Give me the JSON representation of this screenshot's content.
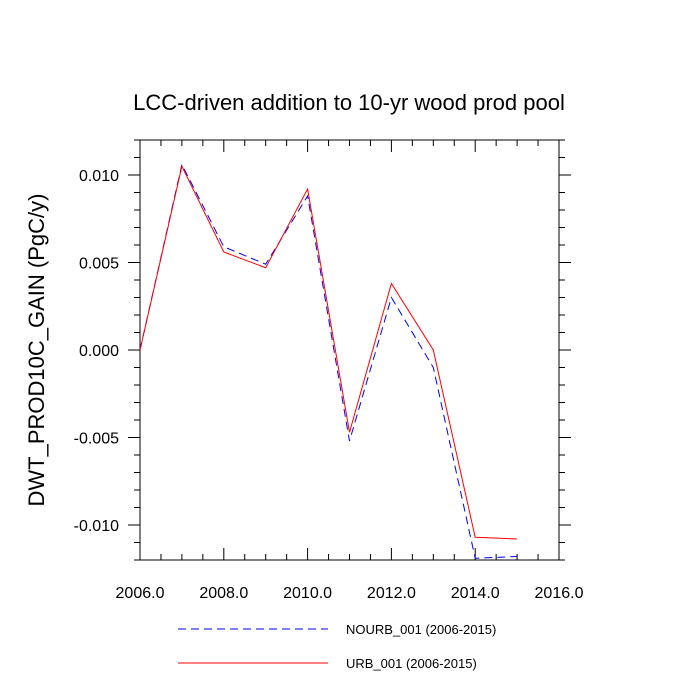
{
  "chart_data": {
    "type": "line",
    "title": "LCC-driven addition to 10-yr wood prod pool",
    "xlabel": "",
    "ylabel": "DWT_PROD10C_GAIN  (PgC/y)",
    "xlim": [
      2006,
      2016
    ],
    "ylim": [
      -0.012,
      0.012
    ],
    "x_ticks": [
      2006,
      2008,
      2010,
      2012,
      2014,
      2016
    ],
    "x_tick_labels": [
      "2006.0",
      "2008.0",
      "2010.0",
      "2012.0",
      "2014.0",
      "2016.0"
    ],
    "y_ticks": [
      -0.01,
      -0.005,
      0.0,
      0.005,
      0.01
    ],
    "y_tick_labels": [
      "-0.010",
      "-0.005",
      "0.000",
      "0.005",
      "0.010"
    ],
    "grid": false,
    "legend_position": "bottom",
    "x": [
      2006,
      2007,
      2008,
      2009,
      2010,
      2011,
      2012,
      2013,
      2014,
      2015
    ],
    "series": [
      {
        "name": "NOURB_001 (2006-2015)",
        "color": "#0000ff",
        "dash": "dashed",
        "values": [
          0.0,
          0.0106,
          0.0059,
          0.0049,
          0.0088,
          -0.0052,
          0.003,
          -0.001,
          -0.0119,
          -0.0118
        ]
      },
      {
        "name": "URB_001 (2006-2015)",
        "color": "#ff0000",
        "dash": "solid",
        "values": [
          0.0,
          0.0105,
          0.0056,
          0.0047,
          0.0092,
          -0.0047,
          0.0038,
          0.0,
          -0.0107,
          -0.0108
        ]
      }
    ]
  }
}
